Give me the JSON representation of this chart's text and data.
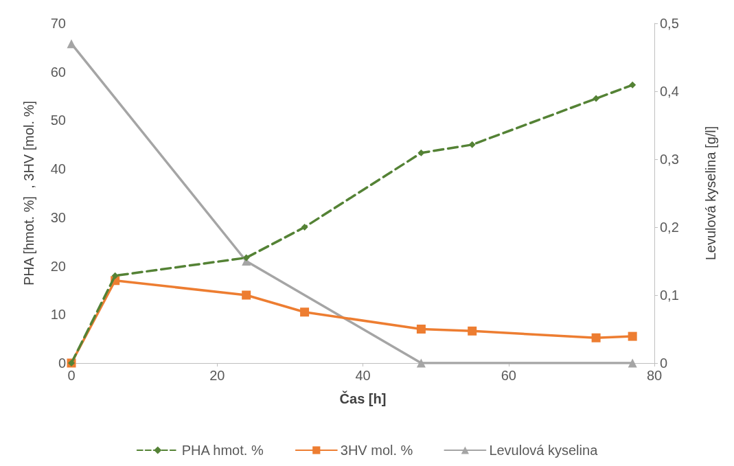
{
  "chart_data": {
    "type": "line",
    "xlabel": "Čas [h]",
    "ylabel": "PHA [hmot. %]  , 3HV [mol. %]",
    "y2label": "Levulová kyselina [g/l]",
    "xlim": [
      0,
      80
    ],
    "xticks": [
      0,
      20,
      40,
      60,
      80
    ],
    "ylim": [
      0,
      70
    ],
    "yticks": [
      0,
      10,
      20,
      30,
      40,
      50,
      60,
      70
    ],
    "y2lim": [
      0,
      0.5
    ],
    "y2ticks": [
      0,
      {
        "value": 0.1,
        "label": "0,1"
      },
      {
        "value": 0.2,
        "label": "0,2"
      },
      {
        "value": 0.3,
        "label": "0,3"
      },
      {
        "value": 0.4,
        "label": "0,4"
      },
      {
        "value": 0.5,
        "label": "0,5"
      }
    ],
    "grid": false,
    "legend": "bottom",
    "series": [
      {
        "name": "PHA hmot. %",
        "color": "#548235",
        "marker": "diamond",
        "line_style": "dashed",
        "x": [
          0,
          6,
          24,
          32,
          48,
          55,
          72,
          77
        ],
        "values": [
          0,
          18,
          21.7,
          28,
          43.3,
          45,
          54.5,
          57.3
        ]
      },
      {
        "name": "3HV mol. %",
        "color": "#ed7d31",
        "marker": "square",
        "line_style": "solid",
        "x": [
          0,
          6,
          24,
          32,
          48,
          55,
          72,
          77
        ],
        "values": [
          0,
          17,
          14,
          10.5,
          7,
          6.6,
          5.2,
          5.5
        ]
      },
      {
        "name": "Levulová kyselina",
        "color": "#a5a5a5",
        "marker": "triangle",
        "line_style": "solid",
        "axis": "y2",
        "x": [
          0,
          24,
          48,
          77
        ],
        "values": [
          0.47,
          0.15,
          0,
          0
        ]
      }
    ]
  }
}
